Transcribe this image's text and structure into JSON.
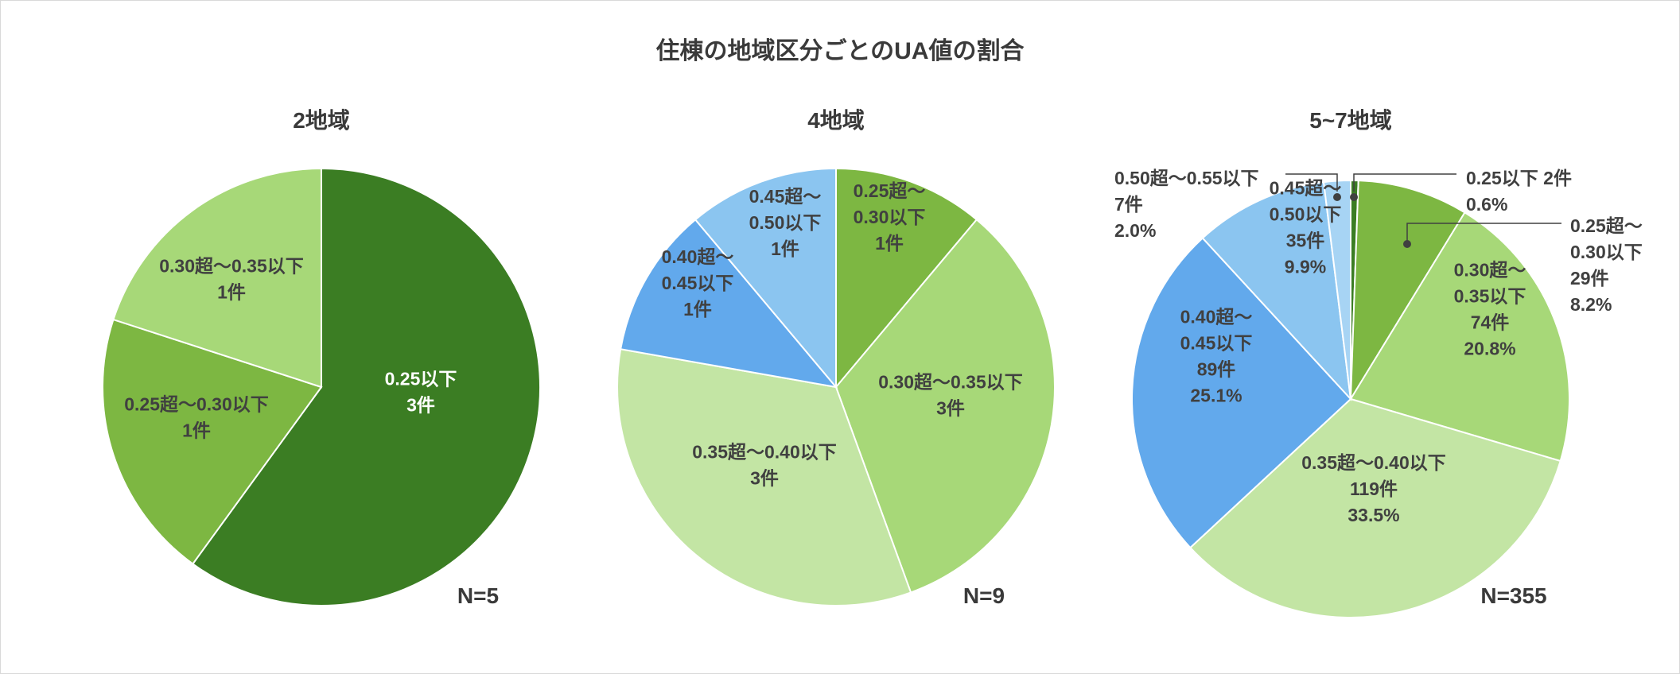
{
  "title": "住棟の地域区分ごとのUA値の割合",
  "colors": {
    "le025": "#3b7d23",
    "b025_030": "#7db742",
    "b030_035": "#a7d878",
    "b035_040": "#c3e5a4",
    "b040_045": "#62a9ec",
    "b045_050": "#8bc5f0",
    "b050_055": "#a7d4f4"
  },
  "chart_data": [
    {
      "type": "pie",
      "title": "2地域",
      "n_label": "N=5",
      "slices": [
        {
          "category": "0.25以下",
          "count": 3,
          "lines": [
            "0.25以下",
            "3件"
          ],
          "color_key": "le025"
        },
        {
          "category": "0.25超〜0.30以下",
          "count": 1,
          "lines": [
            "0.25超〜0.30以下",
            "1件"
          ],
          "color_key": "b025_030"
        },
        {
          "category": "0.30超〜0.35以下",
          "count": 1,
          "lines": [
            "0.30超〜0.35以下",
            "1件"
          ],
          "color_key": "b030_035"
        }
      ]
    },
    {
      "type": "pie",
      "title": "4地域",
      "n_label": "N=9",
      "slices": [
        {
          "category": "0.25超〜0.30以下",
          "count": 1,
          "lines": [
            "0.25超〜",
            "0.30以下",
            "1件"
          ],
          "color_key": "b025_030"
        },
        {
          "category": "0.30超〜0.35以下",
          "count": 3,
          "lines": [
            "0.30超〜0.35以下",
            "3件"
          ],
          "color_key": "b030_035"
        },
        {
          "category": "0.35超〜0.40以下",
          "count": 3,
          "lines": [
            "0.35超〜0.40以下",
            "3件"
          ],
          "color_key": "b035_040"
        },
        {
          "category": "0.40超〜0.45以下",
          "count": 1,
          "lines": [
            "0.40超〜",
            "0.45以下",
            "1件"
          ],
          "color_key": "b040_045"
        },
        {
          "category": "0.45超〜0.50以下",
          "count": 1,
          "lines": [
            "0.45超〜",
            "0.50以下",
            "1件"
          ],
          "color_key": "b045_050"
        }
      ]
    },
    {
      "type": "pie",
      "title": "5~7地域",
      "n_label": "N=355",
      "slices": [
        {
          "category": "0.25以下",
          "count": 2,
          "percent": "0.6%",
          "lines": [
            "0.25以下 2件",
            "0.6%"
          ],
          "color_key": "le025",
          "callout": true
        },
        {
          "category": "0.25超〜0.30以下",
          "count": 29,
          "percent": "8.2%",
          "lines": [
            "0.25超〜",
            "0.30以下",
            "29件",
            "8.2%"
          ],
          "color_key": "b025_030",
          "callout": true
        },
        {
          "category": "0.30超〜0.35以下",
          "count": 74,
          "percent": "20.8%",
          "lines": [
            "0.30超〜",
            "0.35以下",
            "74件",
            "20.8%"
          ],
          "color_key": "b030_035"
        },
        {
          "category": "0.35超〜0.40以下",
          "count": 119,
          "percent": "33.5%",
          "lines": [
            "0.35超〜0.40以下",
            "119件",
            "33.5%"
          ],
          "color_key": "b035_040"
        },
        {
          "category": "0.40超〜0.45以下",
          "count": 89,
          "percent": "25.1%",
          "lines": [
            "0.40超〜",
            "0.45以下",
            "89件",
            "25.1%"
          ],
          "color_key": "b040_045"
        },
        {
          "category": "0.45超〜0.50以下",
          "count": 35,
          "percent": "9.9%",
          "lines": [
            "0.45超〜",
            "0.50以下",
            "35件",
            "9.9%"
          ],
          "color_key": "b045_050"
        },
        {
          "category": "0.50超〜0.55以下",
          "count": 7,
          "percent": "2.0%",
          "lines": [
            "0.50超〜0.55以下",
            "7件",
            "2.0%"
          ],
          "color_key": "b050_055",
          "callout": true
        }
      ]
    }
  ]
}
